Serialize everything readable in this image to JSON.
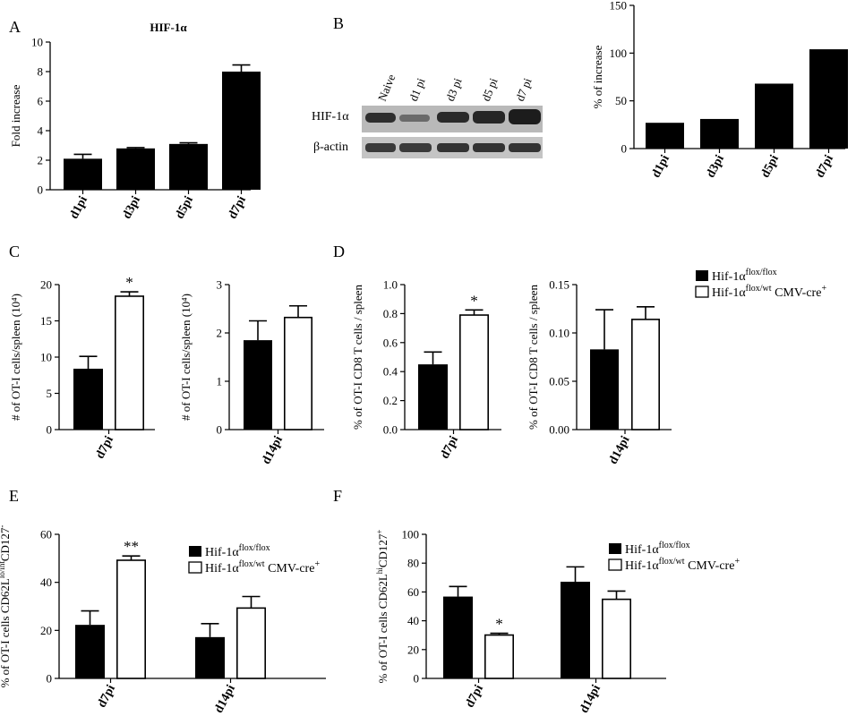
{
  "panel_letters": [
    "A",
    "B",
    "C",
    "D",
    "E",
    "F"
  ],
  "legend": {
    "flox_base": "Hif-1α",
    "flox_sup": "flox/flox",
    "cre_base": "Hif-1α",
    "cre_sup": "flox/wt",
    "cre_suffix": " CMV-cre",
    "cre_suffix_sup": "+"
  },
  "blot": {
    "lanes": [
      "Naive",
      "d1 pi",
      "d3 pi",
      "d5 pi",
      "d7 pi"
    ],
    "rows": [
      "HIF-1α",
      "β-actin"
    ]
  },
  "chart_data": [
    {
      "id": "A",
      "type": "bar",
      "title": "HIF-1α",
      "xlabel": "",
      "ylabel": "Fold increase",
      "categories": [
        "d1pi",
        "d3pi",
        "d5pi",
        "d7pi"
      ],
      "values": [
        2.1,
        2.8,
        3.1,
        8.0
      ],
      "errors": [
        0.3,
        0.05,
        0.08,
        0.45
      ],
      "ylim": [
        0,
        10
      ],
      "yticks": [
        0,
        2,
        4,
        6,
        8,
        10
      ],
      "grid": false
    },
    {
      "id": "B2",
      "type": "bar",
      "title": "",
      "xlabel": "",
      "ylabel": "% of increase",
      "categories": [
        "d1pi",
        "d3pi",
        "d5pi",
        "d7pi"
      ],
      "values": [
        27,
        31,
        68,
        104
      ],
      "ylim": [
        0,
        150
      ],
      "yticks": [
        0,
        50,
        100,
        150
      ],
      "grid": false
    },
    {
      "id": "C1",
      "type": "bar",
      "title": "",
      "xlabel": "",
      "ylabel": "# of OT-I cells/spleen (10⁴)",
      "categories": [
        "d7pi"
      ],
      "series": [
        {
          "name": "Hif-1α flox/flox",
          "values": [
            8.4
          ],
          "errors": [
            1.7
          ]
        },
        {
          "name": "Hif-1α flox/wt CMV-cre+",
          "values": [
            18.4
          ],
          "errors": [
            0.6
          ]
        }
      ],
      "annotations": [
        {
          "category": "d7pi",
          "series": 1,
          "text": "*"
        }
      ],
      "ylim": [
        0,
        20
      ],
      "yticks": [
        0,
        5,
        10,
        15,
        20
      ],
      "grid": false
    },
    {
      "id": "C2",
      "type": "bar",
      "title": "",
      "xlabel": "",
      "ylabel": "# of OT-I cells/spleen (10⁴)",
      "categories": [
        "d14pi"
      ],
      "series": [
        {
          "name": "Hif-1α flox/flox",
          "values": [
            1.85
          ],
          "errors": [
            0.4
          ]
        },
        {
          "name": "Hif-1α flox/wt CMV-cre+",
          "values": [
            2.32
          ],
          "errors": [
            0.24
          ]
        }
      ],
      "ylim": [
        0,
        3
      ],
      "yticks": [
        0,
        1,
        2,
        3
      ],
      "grid": false
    },
    {
      "id": "D1",
      "type": "bar",
      "title": "",
      "xlabel": "",
      "ylabel": "% of OT-I CD8 T cells / spleen",
      "categories": [
        "d7pi"
      ],
      "series": [
        {
          "name": "Hif-1α flox/flox",
          "values": [
            0.45
          ],
          "errors": [
            0.085
          ]
        },
        {
          "name": "Hif-1α flox/wt CMV-cre+",
          "values": [
            0.79
          ],
          "errors": [
            0.035
          ]
        }
      ],
      "annotations": [
        {
          "category": "d7pi",
          "series": 1,
          "text": "*"
        }
      ],
      "ylim": [
        0,
        1.0
      ],
      "yticks": [
        "0.0",
        "0.2",
        "0.4",
        "0.6",
        "0.8",
        "1.0"
      ],
      "grid": false
    },
    {
      "id": "D2",
      "type": "bar",
      "title": "",
      "xlabel": "",
      "ylabel": "% of OT-I CD8 T cells / spleen",
      "categories": [
        "d14pi"
      ],
      "series": [
        {
          "name": "Hif-1α flox/flox",
          "values": [
            0.083
          ],
          "errors": [
            0.041
          ]
        },
        {
          "name": "Hif-1α flox/wt CMV-cre+",
          "values": [
            0.114
          ],
          "errors": [
            0.013
          ]
        }
      ],
      "ylim": [
        0,
        0.15
      ],
      "yticks": [
        "0.00",
        "0.05",
        "0.10",
        "0.15"
      ],
      "grid": false
    },
    {
      "id": "E",
      "type": "bar",
      "title": "",
      "xlabel": "",
      "ylabel": "% of OT-I cells CD62L lo/int CD127 -",
      "categories": [
        "d7pi",
        "d14pi"
      ],
      "series": [
        {
          "name": "Hif-1α flox/flox",
          "values": [
            22.3,
            17.2
          ],
          "errors": [
            5.8,
            5.6
          ]
        },
        {
          "name": "Hif-1α flox/wt CMV-cre+",
          "values": [
            49.2,
            29.3
          ],
          "errors": [
            1.8,
            4.8
          ]
        }
      ],
      "annotations": [
        {
          "category": "d7pi",
          "series": 1,
          "text": "**"
        }
      ],
      "ylim": [
        0,
        60
      ],
      "yticks": [
        0,
        20,
        40,
        60
      ],
      "grid": false
    },
    {
      "id": "F",
      "type": "bar",
      "title": "",
      "xlabel": "",
      "ylabel": "% of OT-I cells CD62L hi CD127 +",
      "categories": [
        "d7pi",
        "d14pi"
      ],
      "series": [
        {
          "name": "Hif-1α flox/flox",
          "values": [
            56.8,
            67.1
          ],
          "errors": [
            7.0,
            10.3
          ]
        },
        {
          "name": "Hif-1α flox/wt CMV-cre+",
          "values": [
            30.1,
            54.9
          ],
          "errors": [
            1.2,
            5.7
          ]
        }
      ],
      "annotations": [
        {
          "category": "d7pi",
          "series": 1,
          "text": "*"
        }
      ],
      "ylim": [
        0,
        100
      ],
      "yticks": [
        0,
        20,
        40,
        60,
        80,
        100
      ],
      "grid": false
    }
  ]
}
